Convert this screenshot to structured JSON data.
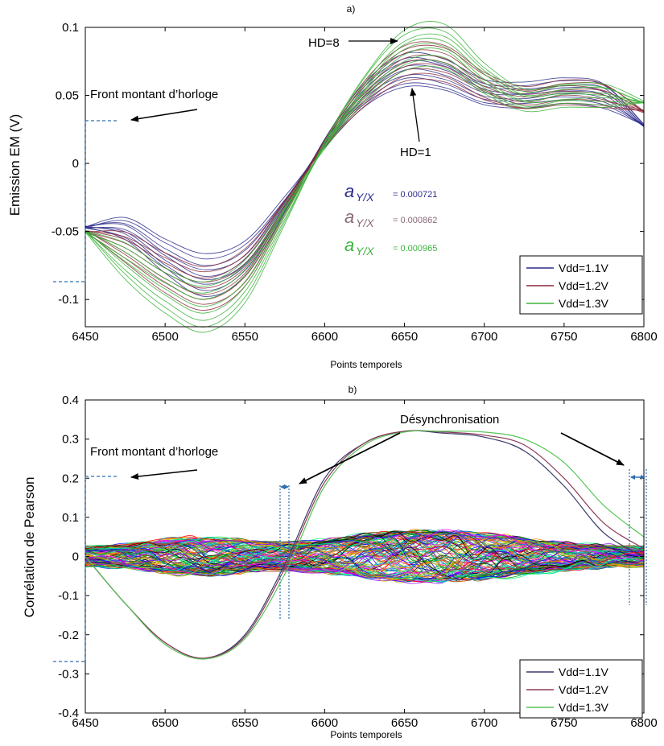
{
  "chart_data": [
    {
      "type": "line",
      "title": "a)",
      "xlabel": "Points temporels",
      "ylabel": "Emission EM (V)",
      "xlim": [
        6450,
        6800
      ],
      "ylim": [
        -0.12,
        0.1
      ],
      "x_ticks": [
        6450,
        6500,
        6550,
        6600,
        6650,
        6700,
        6750,
        6800
      ],
      "y_ticks": [
        -0.1,
        -0.05,
        0,
        0.05,
        0.1
      ],
      "y_tick_labels": [
        "-0.1",
        "-0.05",
        "0",
        "0.05",
        "0.1"
      ],
      "grid": false,
      "legend_position": "bottom-right",
      "x": [
        6450,
        6475,
        6500,
        6525,
        6550,
        6575,
        6600,
        6625,
        6650,
        6675,
        6700,
        6725,
        6750,
        6775,
        6800
      ],
      "series": [
        {
          "name": "Vdd=1.1V",
          "color": "#2b2b8c",
          "values": [
            -0.047,
            -0.048,
            -0.068,
            -0.082,
            -0.07,
            -0.03,
            0.015,
            0.05,
            0.068,
            0.065,
            0.052,
            0.05,
            0.053,
            0.05,
            0.028
          ]
        },
        {
          "name": "Vdd=1.2V",
          "color": "#8b2a3a",
          "values": [
            -0.05,
            -0.062,
            -0.08,
            -0.092,
            -0.077,
            -0.033,
            0.015,
            0.052,
            0.074,
            0.074,
            0.057,
            0.048,
            0.052,
            0.05,
            0.038
          ]
        },
        {
          "name": "Vdd=1.3V",
          "color": "#3cb43c",
          "values": [
            -0.05,
            -0.072,
            -0.093,
            -0.105,
            -0.086,
            -0.037,
            0.013,
            0.055,
            0.083,
            0.086,
            0.062,
            0.047,
            0.05,
            0.05,
            0.045
          ]
        }
      ],
      "annotations": [
        {
          "text": "HD=8"
        },
        {
          "text": "HD=1"
        },
        {
          "text": "Front montant d’horloge"
        }
      ],
      "slopes": [
        {
          "symbol": "aY/X",
          "sub": "Y/X",
          "value": "= 0.000721",
          "color": "#2b2b8c"
        },
        {
          "symbol": "aY/X",
          "sub": "Y/X",
          "value": "= 0.000862",
          "color": "#8a6a78"
        },
        {
          "symbol": "aY/X",
          "sub": "Y/X",
          "value": "= 0.000965",
          "color": "#3cb43c"
        }
      ]
    },
    {
      "type": "line",
      "title": "b)",
      "xlabel": "Points temporels",
      "ylabel": "Corrélation de Pearson",
      "xlim": [
        6450,
        6800
      ],
      "ylim": [
        -0.4,
        0.4
      ],
      "x_ticks": [
        6450,
        6500,
        6550,
        6600,
        6650,
        6700,
        6750,
        6800
      ],
      "y_ticks": [
        -0.4,
        -0.3,
        -0.2,
        -0.1,
        0,
        0.1,
        0.2,
        0.3,
        0.4
      ],
      "y_tick_labels": [
        "-0.4",
        "-0.3",
        "-0.2",
        "-0.1",
        "0",
        "0.1",
        "0.2",
        "0.3",
        "0.4"
      ],
      "grid": false,
      "legend_position": "bottom-right",
      "x": [
        6450,
        6475,
        6500,
        6525,
        6550,
        6575,
        6600,
        6625,
        6650,
        6675,
        6700,
        6725,
        6750,
        6775,
        6800
      ],
      "series": [
        {
          "name": "Vdd=1.1V",
          "color": "#3a3a6a",
          "values": [
            0,
            -0.12,
            -0.22,
            -0.26,
            -0.2,
            -0.02,
            0.2,
            0.29,
            0.32,
            0.315,
            0.305,
            0.27,
            0.18,
            0.06,
            0.0
          ]
        },
        {
          "name": "Vdd=1.2V",
          "color": "#8b3a5a",
          "values": [
            0,
            -0.12,
            -0.22,
            -0.26,
            -0.205,
            -0.03,
            0.19,
            0.29,
            0.32,
            0.318,
            0.31,
            0.285,
            0.2,
            0.085,
            0.02
          ]
        },
        {
          "name": "Vdd=1.3V",
          "color": "#56c456",
          "values": [
            0,
            -0.12,
            -0.225,
            -0.262,
            -0.21,
            -0.045,
            0.18,
            0.285,
            0.318,
            0.32,
            0.318,
            0.3,
            0.24,
            0.13,
            0.05
          ]
        }
      ],
      "annotations": [
        {
          "text": "Désynchronisation"
        },
        {
          "text": "Front montant d’horloge"
        }
      ]
    }
  ]
}
